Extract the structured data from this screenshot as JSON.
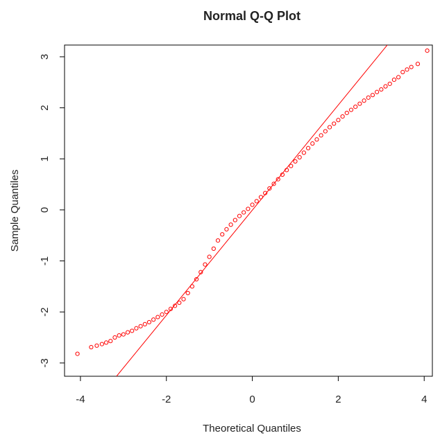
{
  "chart_data": {
    "type": "scatter",
    "title": "Normal Q-Q Plot",
    "xlabel": "Theoretical Quantiles",
    "ylabel": "Sample Quantiles",
    "xlim": [
      -4.37,
      4.19
    ],
    "ylim": [
      -3.26,
      3.23
    ],
    "xticks": [
      -4,
      -2,
      0,
      2,
      4
    ],
    "yticks": [
      -3,
      -2,
      -1,
      0,
      1,
      2,
      3
    ],
    "series": [
      {
        "color": "#ff0000",
        "x": [
          -4.07,
          -3.75,
          -3.62,
          -3.5,
          -3.4,
          -3.3,
          -3.2,
          -3.1,
          -3.0,
          -2.9,
          -2.8,
          -2.7,
          -2.6,
          -2.5,
          -2.4,
          -2.3,
          -2.2,
          -2.1,
          -2.0,
          -1.9,
          -1.8,
          -1.7,
          -1.6,
          -1.5,
          -1.4,
          -1.3,
          -1.2,
          -1.1,
          -1.0,
          -0.9,
          -0.8,
          -0.7,
          -0.6,
          -0.5,
          -0.4,
          -0.3,
          -0.2,
          -0.1,
          0,
          0.1,
          0.2,
          0.3,
          0.4,
          0.5,
          0.6,
          0.7,
          0.8,
          0.9,
          1.0,
          1.1,
          1.2,
          1.3,
          1.4,
          1.5,
          1.6,
          1.7,
          1.8,
          1.9,
          2.0,
          2.1,
          2.2,
          2.3,
          2.4,
          2.5,
          2.6,
          2.7,
          2.8,
          2.9,
          3.0,
          3.1,
          3.2,
          3.3,
          3.4,
          3.5,
          3.6,
          3.7,
          3.85,
          4.07
        ],
        "values": [
          -2.82,
          -2.69,
          -2.66,
          -2.63,
          -2.6,
          -2.57,
          -2.5,
          -2.46,
          -2.44,
          -2.4,
          -2.37,
          -2.32,
          -2.28,
          -2.24,
          -2.2,
          -2.15,
          -2.1,
          -2.05,
          -2.0,
          -1.94,
          -1.88,
          -1.82,
          -1.75,
          -1.63,
          -1.5,
          -1.36,
          -1.22,
          -1.07,
          -0.92,
          -0.76,
          -0.6,
          -0.48,
          -0.38,
          -0.29,
          -0.2,
          -0.12,
          -0.05,
          0.02,
          0.1,
          0.17,
          0.25,
          0.33,
          0.42,
          0.51,
          0.6,
          0.69,
          0.78,
          0.86,
          0.95,
          1.03,
          1.12,
          1.21,
          1.3,
          1.38,
          1.46,
          1.54,
          1.62,
          1.69,
          1.76,
          1.83,
          1.9,
          1.96,
          2.02,
          2.08,
          2.14,
          2.2,
          2.25,
          2.31,
          2.36,
          2.42,
          2.47,
          2.55,
          2.6,
          2.7,
          2.75,
          2.8,
          2.86,
          3.12
        ]
      }
    ],
    "line": {
      "color": "#ff0000",
      "x": [
        -3.16,
        3.17
      ],
      "values": [
        -3.26,
        3.26
      ]
    }
  }
}
